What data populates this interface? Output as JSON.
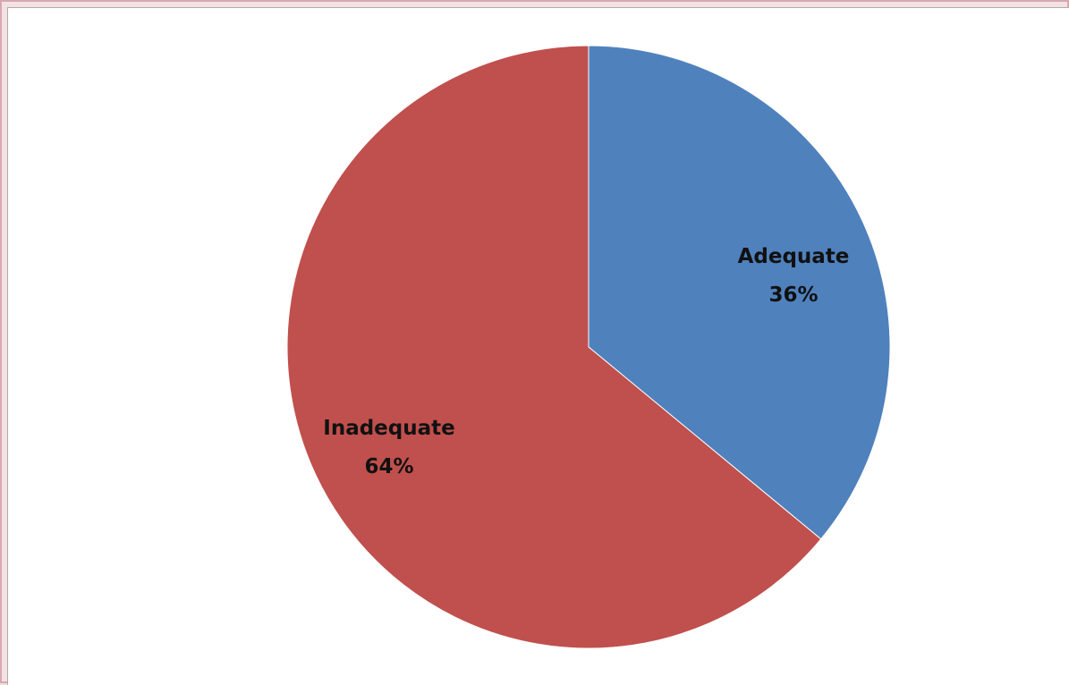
{
  "chart_data": {
    "type": "pie",
    "title": "",
    "slices": [
      {
        "label": "Adequate",
        "value": 36,
        "display_value": "36%",
        "color": "#4f81bd"
      },
      {
        "label": "Inadequate",
        "value": 64,
        "display_value": "64%",
        "color": "#c0504d"
      }
    ],
    "legend": "none",
    "data_labels": "inside"
  }
}
